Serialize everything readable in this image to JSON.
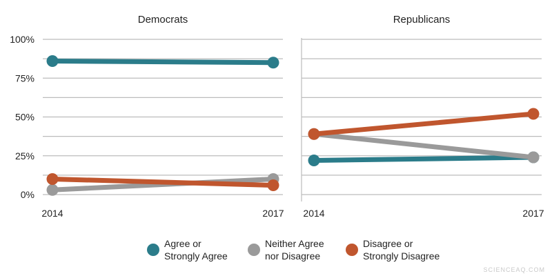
{
  "chart_data": [
    {
      "type": "line",
      "title": "Democrats",
      "x": [
        "2014",
        "2017"
      ],
      "ylim": [
        0,
        100
      ],
      "yticks": [
        0,
        25,
        50,
        75,
        100
      ],
      "ytick_labels": [
        "0%",
        "25%",
        "50%",
        "75%",
        "100%"
      ],
      "grid": true,
      "series": [
        {
          "name": "Agree or Strongly Agree",
          "values": [
            86,
            85
          ]
        },
        {
          "name": "Neither Agree nor Disagree",
          "values": [
            3,
            10
          ]
        },
        {
          "name": "Disagree or Strongly Disagree",
          "values": [
            10,
            6
          ]
        }
      ]
    },
    {
      "type": "line",
      "title": "Republicans",
      "x": [
        "2014",
        "2017"
      ],
      "ylim": [
        0,
        100
      ],
      "yticks": [
        0,
        25,
        50,
        75,
        100
      ],
      "grid": true,
      "series": [
        {
          "name": "Agree or Strongly Agree",
          "values": [
            22,
            24
          ]
        },
        {
          "name": "Neither Agree nor Disagree",
          "values": [
            39,
            24
          ]
        },
        {
          "name": "Disagree or Strongly Disagree",
          "values": [
            39,
            52
          ]
        }
      ]
    }
  ],
  "legend": {
    "placement": "bottom",
    "items": [
      {
        "lines": [
          "Agree or",
          "Strongly Agree"
        ],
        "color": "#2b7c8a"
      },
      {
        "lines": [
          "Neither Agree",
          "nor Disagree"
        ],
        "color": "#9a9a9a"
      },
      {
        "lines": [
          "Disagree or",
          "Strongly Disagree"
        ],
        "color": "#c0562e"
      }
    ]
  },
  "colors": [
    "#2b7c8a",
    "#9a9a9a",
    "#c0562e"
  ],
  "watermark": "SCIENCEAQ.COM"
}
